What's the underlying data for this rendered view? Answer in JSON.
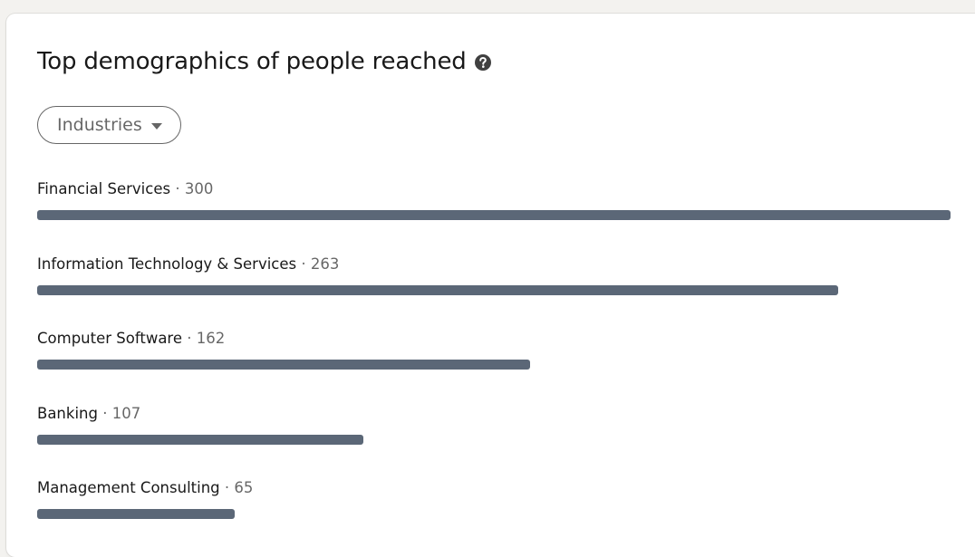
{
  "card": {
    "title": "Top demographics of people reached"
  },
  "filter": {
    "selected": "Industries"
  },
  "colors": {
    "bar": "#5b6777"
  },
  "chart_data": {
    "type": "bar",
    "orientation": "horizontal",
    "categories": [
      "Financial Services",
      "Information Technology & Services",
      "Computer Software",
      "Banking",
      "Management Consulting"
    ],
    "values": [
      300,
      263,
      162,
      107,
      65
    ],
    "separator": " · ",
    "grid": false
  }
}
